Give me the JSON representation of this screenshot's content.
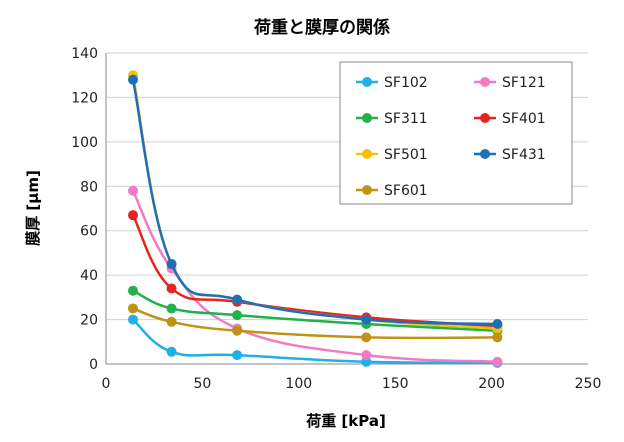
{
  "chart_data": {
    "type": "line",
    "title": "荷重と膜厚の関係",
    "xlabel": "荷重 [kPa]",
    "ylabel": "膜厚 [μm]",
    "xlim": [
      0,
      250
    ],
    "ylim": [
      0,
      140
    ],
    "xticks": [
      0,
      50,
      100,
      150,
      200,
      250
    ],
    "yticks": [
      0,
      20,
      40,
      60,
      80,
      100,
      120,
      140
    ],
    "grid": "horizontal",
    "legend_position": "top-right",
    "x": [
      14,
      34,
      68,
      135,
      203
    ],
    "series": [
      {
        "name": "SF102",
        "color": "#1fb0e8",
        "values": [
          20,
          5.5,
          4,
          1,
          0.5
        ]
      },
      {
        "name": "SF121",
        "color": "#f07ac5",
        "values": [
          78,
          43,
          16,
          4,
          1
        ]
      },
      {
        "name": "SF311",
        "color": "#22b04a",
        "values": [
          33,
          25,
          22,
          18,
          15
        ]
      },
      {
        "name": "SF401",
        "color": "#e8231f",
        "values": [
          67,
          34,
          28,
          21,
          17
        ]
      },
      {
        "name": "SF501",
        "color": "#f5bf0a",
        "values": [
          130,
          45,
          29,
          20,
          16
        ]
      },
      {
        "name": "SF431",
        "color": "#1f6fb8",
        "values": [
          128,
          45,
          29,
          20,
          18
        ]
      },
      {
        "name": "SF601",
        "color": "#c09314",
        "values": [
          25,
          19,
          15,
          12,
          12
        ]
      }
    ]
  }
}
